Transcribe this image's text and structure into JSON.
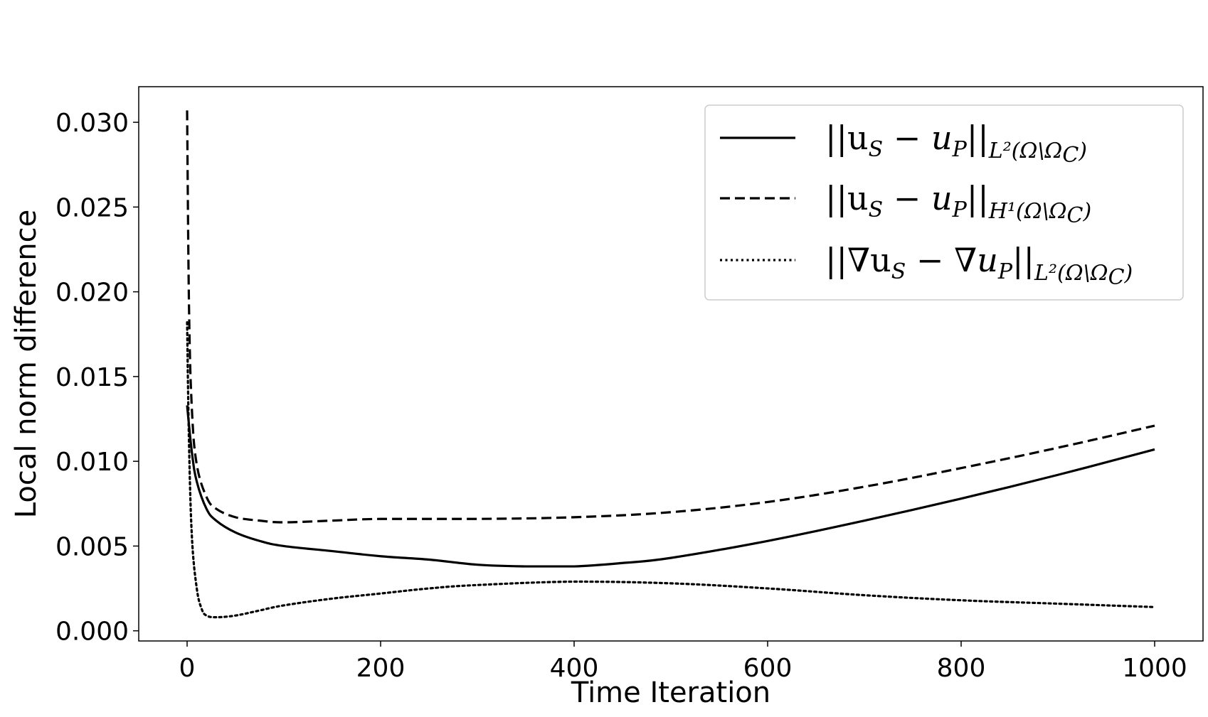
{
  "chart_data": {
    "type": "line",
    "xlabel": "Time Iteration",
    "ylabel": "Local norm difference",
    "xlim": [
      -50,
      1050
    ],
    "ylim": [
      -0.0006,
      0.0321
    ],
    "xticks": [
      0,
      200,
      400,
      600,
      800,
      1000
    ],
    "yticks": [
      0.0,
      0.005,
      0.01,
      0.015,
      0.02,
      0.025,
      0.03
    ],
    "xtick_labels": [
      "0",
      "200",
      "400",
      "600",
      "800",
      "1000"
    ],
    "ytick_labels": [
      "0.000",
      "0.005",
      "0.010",
      "0.015",
      "0.020",
      "0.025",
      "0.030"
    ],
    "grid": false,
    "legend_position": "top-right",
    "series": [
      {
        "name": "||u_S − u_P||_{L²(Ω\\Ω_C)}",
        "label_main": "||u",
        "label_sub1": "S",
        "label_mid": " − u",
        "label_sub2": "P",
        "label_end": "||",
        "label_norm": "L²(Ω\\Ω",
        "label_norm_sub": "C",
        "label_close": ")",
        "style": "solid",
        "color": "#000000",
        "x": [
          0,
          5,
          10,
          20,
          30,
          50,
          75,
          100,
          150,
          200,
          250,
          300,
          350,
          400,
          450,
          500,
          600,
          700,
          800,
          900,
          1000
        ],
        "y": [
          0.0133,
          0.0105,
          0.0088,
          0.0072,
          0.0065,
          0.0058,
          0.0053,
          0.005,
          0.0047,
          0.0044,
          0.0042,
          0.0039,
          0.0038,
          0.0038,
          0.004,
          0.0043,
          0.0053,
          0.0065,
          0.0078,
          0.0092,
          0.0107
        ]
      },
      {
        "name": "||u_S − u_P||_{H¹(Ω\\Ω_C)}",
        "label_main": "||u",
        "label_sub1": "S",
        "label_mid": " − u",
        "label_sub2": "P",
        "label_end": "||",
        "label_norm": "H¹(Ω\\Ω",
        "label_norm_sub": "C",
        "label_close": ")",
        "style": "dashed",
        "color": "#000000",
        "x": [
          0,
          2,
          5,
          10,
          20,
          30,
          50,
          75,
          100,
          150,
          200,
          300,
          400,
          500,
          600,
          700,
          800,
          900,
          1000
        ],
        "y": [
          0.0307,
          0.019,
          0.013,
          0.0098,
          0.0079,
          0.0072,
          0.0067,
          0.0065,
          0.0064,
          0.0065,
          0.0066,
          0.0066,
          0.0067,
          0.007,
          0.0076,
          0.0085,
          0.0096,
          0.0108,
          0.0121
        ]
      },
      {
        "name": "||∇u_S − ∇u_P||_{L²(Ω\\Ω_C)}",
        "label_main": "||∇u",
        "label_sub1": "S",
        "label_mid": " − ∇u",
        "label_sub2": "P",
        "label_end": "||",
        "label_norm": "L²(Ω\\Ω",
        "label_norm_sub": "C",
        "label_close": ")",
        "style": "dotted",
        "color": "#000000",
        "x": [
          0,
          2,
          5,
          10,
          15,
          20,
          30,
          50,
          75,
          100,
          150,
          200,
          250,
          300,
          400,
          500,
          600,
          700,
          800,
          900,
          1000
        ],
        "y": [
          0.0182,
          0.011,
          0.0055,
          0.0025,
          0.0013,
          0.0009,
          0.0008,
          0.0009,
          0.0012,
          0.0015,
          0.0019,
          0.0022,
          0.0025,
          0.0027,
          0.0029,
          0.0028,
          0.0025,
          0.0021,
          0.0018,
          0.0016,
          0.0014
        ]
      }
    ]
  }
}
